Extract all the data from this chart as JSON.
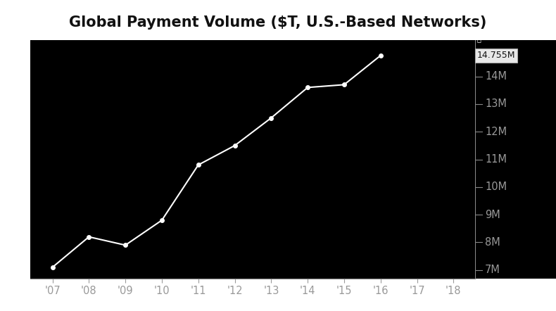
{
  "title": "Global Payment Volume ($T, U.S.-Based Networks)",
  "x_years": [
    2007,
    2008,
    2009,
    2010,
    2011,
    2012,
    2013,
    2014,
    2015,
    2016
  ],
  "y_values": [
    7100,
    8200,
    7900,
    8800,
    10800,
    11500,
    12500,
    13600,
    13700,
    14755
  ],
  "xlim": [
    2006.4,
    2018.6
  ],
  "ylim": [
    6700,
    15300
  ],
  "yticks": [
    7000,
    8000,
    9000,
    10000,
    11000,
    12000,
    13000,
    14000
  ],
  "ytick_labels": [
    "7M",
    "8M",
    "9M",
    "10M",
    "11M",
    "12M",
    "13M",
    "14M"
  ],
  "xticks": [
    2007,
    2008,
    2009,
    2010,
    2011,
    2012,
    2013,
    2014,
    2015,
    2016,
    2017,
    2018
  ],
  "xtick_labels": [
    "'07",
    "'08",
    "'09",
    "'10",
    "'11",
    "'12",
    "'13",
    "'14",
    "'15",
    "'16",
    "'17",
    "'18"
  ],
  "last_label": "14.755M",
  "last_value": 14755,
  "last_year": 2016,
  "background_color": "#000000",
  "outer_bg_color": "#000000",
  "title_bg_color": "#ffffff",
  "line_color": "#ffffff",
  "marker_color": "#ffffff",
  "tick_label_color": "#999999",
  "spine_color": "#888888",
  "last_label_fg": "#ffffff",
  "title_fontsize": 15,
  "tick_fontsize": 10.5
}
